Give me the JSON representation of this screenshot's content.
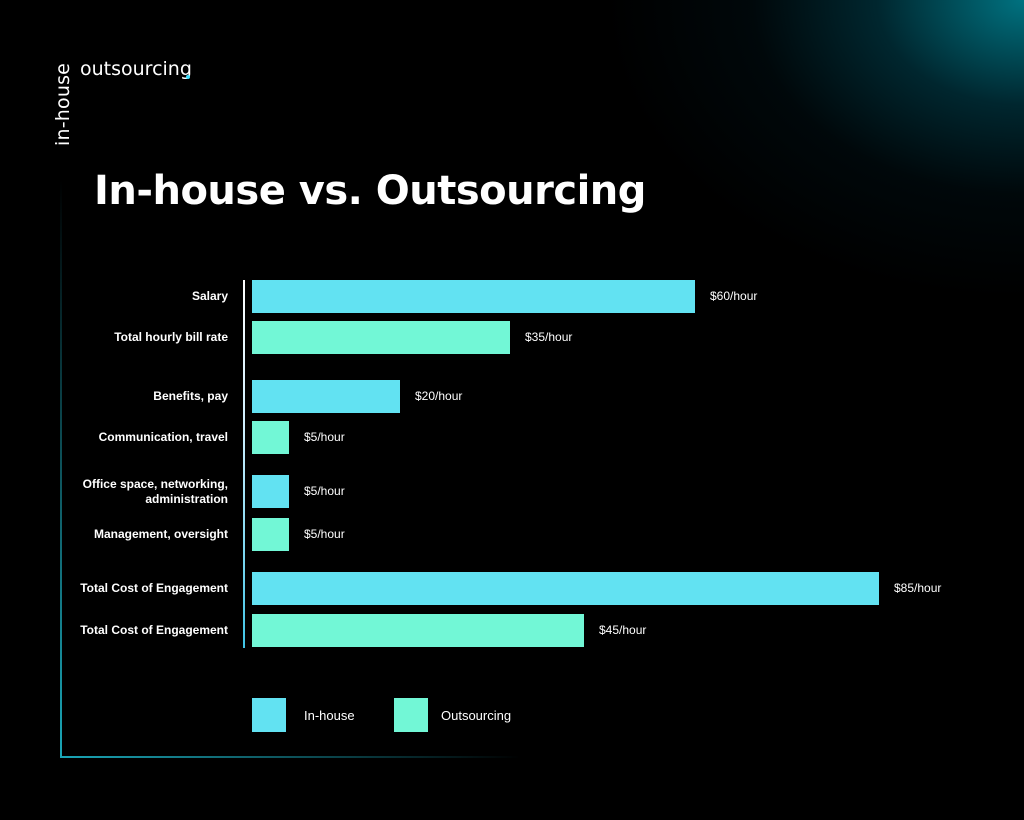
{
  "logo": {
    "vertical_text": "in-house",
    "horizontal_text": "outsourcing"
  },
  "colors": {
    "in_house": "#62e2f2",
    "outsourcing": "#72f7d6",
    "accent": "#1aa6b7",
    "background": "#000000"
  },
  "chart_data": {
    "type": "bar",
    "orientation": "horizontal",
    "title": "In-house vs. Outsourcing",
    "xlabel": "",
    "ylabel": "",
    "unit": "$/hour",
    "xlim": [
      0,
      85
    ],
    "grid": false,
    "legend_position": "bottom",
    "series": [
      {
        "name": "In-house",
        "color_key": "in_house"
      },
      {
        "name": "Outsourcing",
        "color_key": "outsourcing"
      }
    ],
    "rows": [
      {
        "category": "Salary",
        "series": "In-house",
        "value": 60,
        "label": "$60/hour"
      },
      {
        "category": "Total hourly bill rate",
        "series": "Outsourcing",
        "value": 35,
        "label": "$35/hour"
      },
      {
        "category": "Benefits, pay",
        "series": "In-house",
        "value": 20,
        "label": "$20/hour"
      },
      {
        "category": "Communication, travel",
        "series": "Outsourcing",
        "value": 5,
        "label": "$5/hour"
      },
      {
        "category": "Office space, networking,\nadministration",
        "series": "In-house",
        "value": 5,
        "label": "$5/hour"
      },
      {
        "category": "Management, oversight",
        "series": "Outsourcing",
        "value": 5,
        "label": "$5/hour"
      },
      {
        "category": "Total Cost of Engagement",
        "series": "In-house",
        "value": 85,
        "label": "$85/hour"
      },
      {
        "category": "Total Cost of Engagement",
        "series": "Outsourcing",
        "value": 45,
        "label": "$45/hour"
      }
    ]
  },
  "legend": [
    {
      "label": "In-house",
      "color_key": "in_house"
    },
    {
      "label": "Outsourcing",
      "color_key": "outsourcing"
    }
  ]
}
